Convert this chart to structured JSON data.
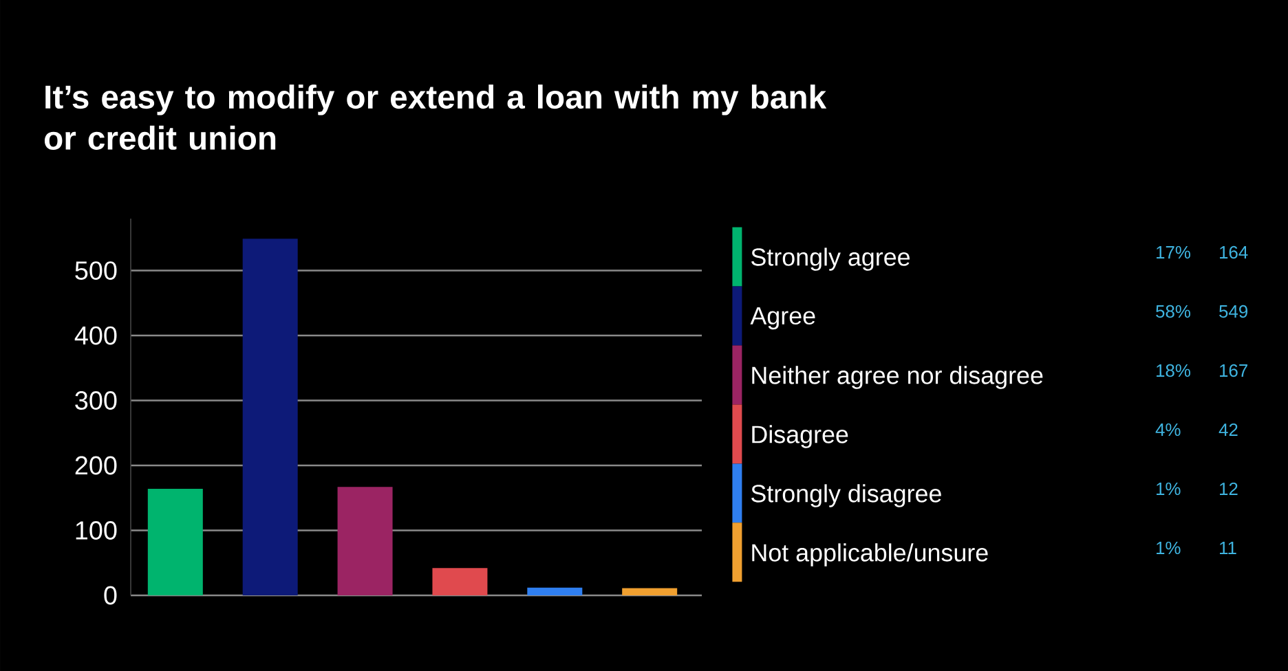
{
  "chart_data": {
    "type": "bar",
    "title": "It’s easy to modify or extend a loan with my bank or credit union",
    "categories": [
      null,
      null,
      null,
      null,
      null,
      null
    ],
    "series": [
      {
        "name": "Strongly agree",
        "color": "#00b46e",
        "values": [
          164,
          null,
          null,
          null,
          null,
          null
        ]
      },
      {
        "name": "Agree",
        "color": "#0d1a78",
        "values": [
          null,
          549,
          null,
          null,
          null,
          null
        ]
      },
      {
        "name": "Neither agree nor disagree",
        "color": "#9b2463",
        "values": [
          null,
          null,
          167,
          null,
          null,
          null
        ]
      },
      {
        "name": "Disagree",
        "color": "#e04a4e",
        "values": [
          null,
          null,
          null,
          42,
          null,
          null
        ]
      },
      {
        "name": "Strongly disagree",
        "color": "#2f7ff0",
        "values": [
          null,
          null,
          null,
          null,
          12,
          null
        ]
      },
      {
        "name": "Not applicable/unsure",
        "color": "#f0a030",
        "values": [
          null,
          null,
          null,
          null,
          null,
          11
        ]
      }
    ],
    "ylim": [
      0,
      580
    ],
    "yticks": [
      0,
      100,
      200,
      300,
      400,
      500
    ],
    "grid": "y",
    "legend": "right",
    "tick_labels": "y",
    "annotations": [
      "17%",
      "164",
      "58%",
      "549",
      "18%",
      "167",
      "4%",
      "42",
      "1%",
      "12",
      "1%",
      "11"
    ]
  }
}
